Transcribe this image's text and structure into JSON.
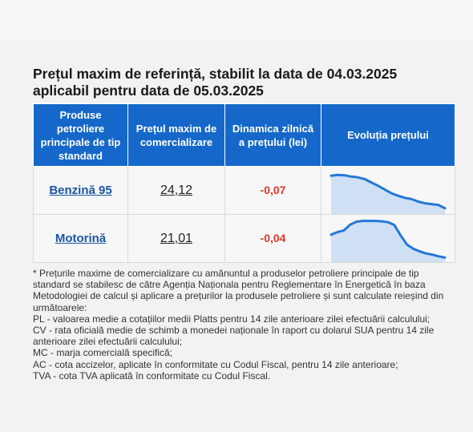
{
  "title_line1": "Prețul maxim de referință, stabilit la data de 04.03.2025",
  "title_line2": "aplicabil pentru data de 05.03.2025",
  "table": {
    "headers": [
      "Produse petroliere principale de tip standard",
      "Prețul maxim de comercializare",
      "Dinamica zilnică a prețului (lei)",
      "Evoluția prețului"
    ],
    "rows": [
      {
        "product": "Benzină 95",
        "price": "24,12",
        "dynamic": "-0,07",
        "trend": [
          0.88,
          0.9,
          0.89,
          0.86,
          0.84,
          0.8,
          0.72,
          0.64,
          0.55,
          0.46,
          0.4,
          0.35,
          0.32,
          0.26,
          0.22,
          0.2,
          0.18,
          0.1
        ]
      },
      {
        "product": "Motorină",
        "price": "21,01",
        "dynamic": "-0,04",
        "trend": [
          0.62,
          0.68,
          0.72,
          0.86,
          0.93,
          0.95,
          0.95,
          0.95,
          0.94,
          0.92,
          0.85,
          0.6,
          0.38,
          0.28,
          0.22,
          0.17,
          0.14,
          0.1,
          0.07
        ]
      }
    ],
    "fill_color": "#cfe0f5",
    "line_color": "#2478d8"
  },
  "footnote": [
    "* Prețurile maxime de comercializare cu amănuntul a produselor petroliere principale de tip standard se stabilesc de către Agenția Naționala pentru Reglementare în Energetică în baza Metodologiei de calcul și aplicare a prețurilor la produsele petroliere și sunt calculate reieșind din următoarele:",
    "PL - valoarea medie a cotațiilor medii Platts pentru 14 zile anterioare zilei efectuării calculului;",
    "CV - rata oficială medie de schimb a monedei naționale în raport cu dolarul SUA pentru 14 zile anterioare zilei efectuării calculului;",
    "MC - marja comercială specifică;",
    "AC - cota accizelor, aplicate în conformitate cu Codul Fiscal, pentru 14 zile anterioare;",
    "TVA - cota TVA aplicată în conformitate cu Codul Fiscal."
  ]
}
